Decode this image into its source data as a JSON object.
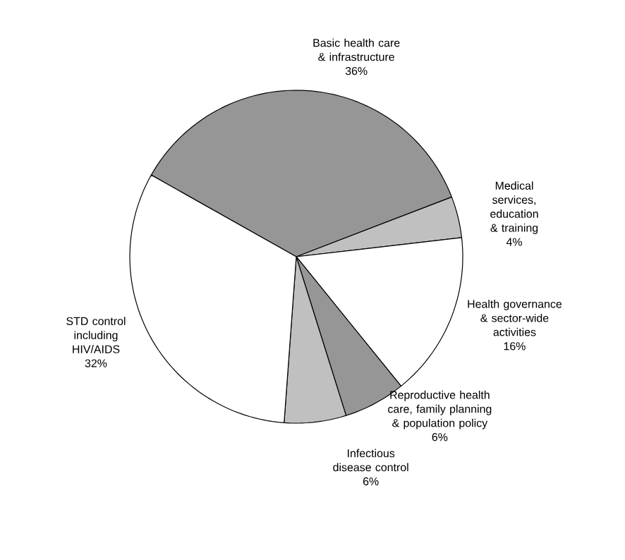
{
  "chart_data": {
    "type": "pie",
    "categories": [
      "Basic health care & infrastructure",
      "Medical services, education & training",
      "Health governance & sector-wide activities",
      "Reproductive health care, family planning & population policy",
      "Infectious disease control",
      "STD control including HIV/AIDS"
    ],
    "values": [
      36,
      4,
      16,
      6,
      6,
      32
    ],
    "colors": [
      "#969696",
      "#c0c0c0",
      "#ffffff",
      "#969696",
      "#c0c0c0",
      "#ffffff"
    ],
    "value_labels": [
      "36%",
      "4%",
      "16%",
      "6%",
      "6%",
      "32%"
    ]
  }
}
